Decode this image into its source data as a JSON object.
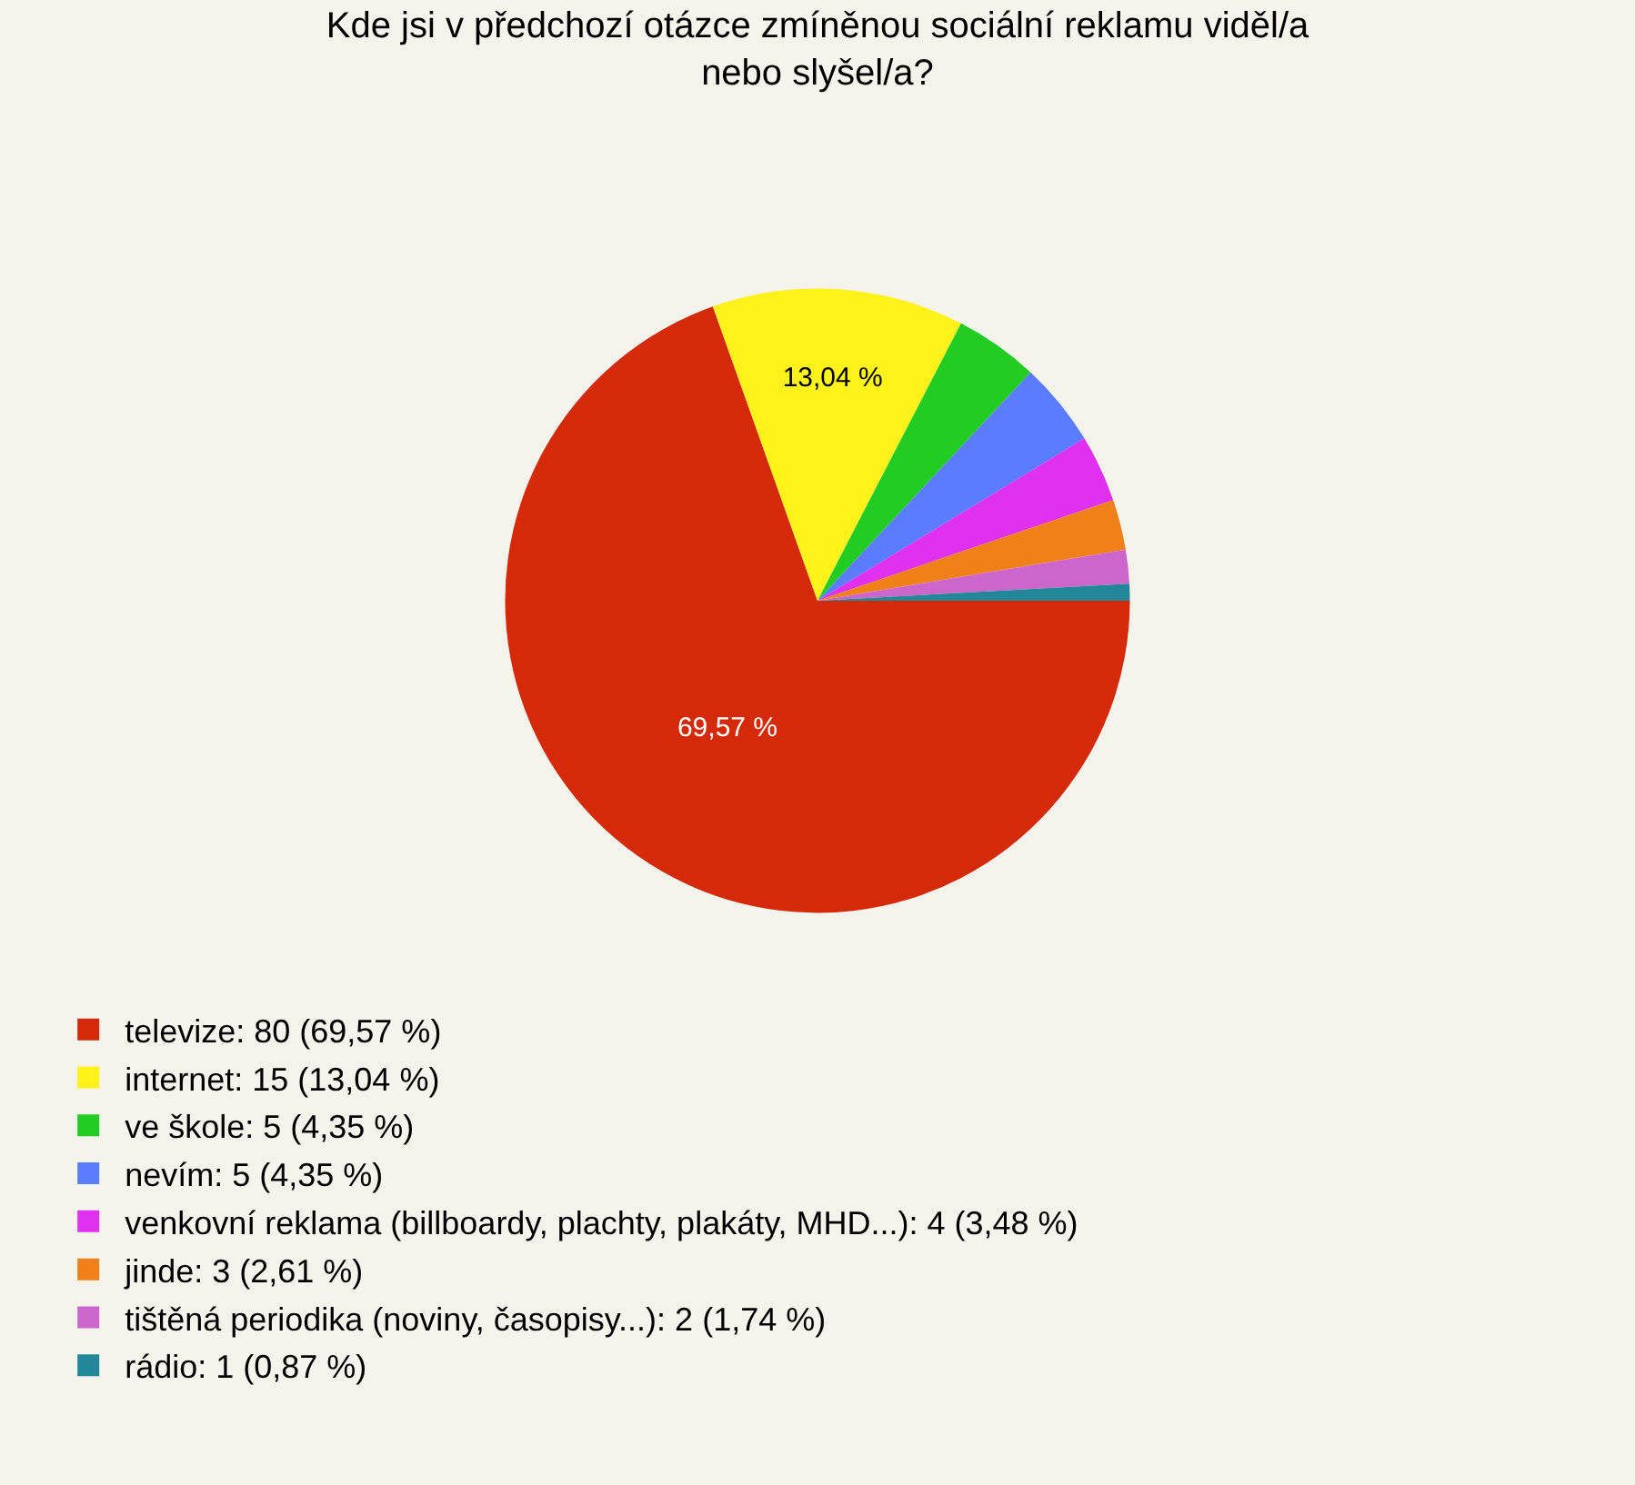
{
  "chart_data": {
    "type": "pie",
    "title": "Kde jsi v předchozí otázce zmíněnou sociální reklamu viděl/a nebo slyšel/a?",
    "categories": [
      "televize: 80 (69,57 %)",
      "internet: 15 (13,04 %)",
      "ve škole: 5 (4,35 %)",
      "nevím: 5 (4,35 %)",
      "venkovní reklama (billboardy, plachty, plakáty, MHD...): 4 (3,48 %)",
      "jinde: 3 (2,61 %)",
      "tištěná periodika (noviny, časopisy...): 2 (1,74 %)",
      "rádio: 1 (0,87 %)"
    ],
    "values": [
      69.57,
      13.04,
      4.35,
      4.35,
      3.48,
      2.61,
      1.74,
      0.87
    ],
    "value_labels": [
      "69,57 %",
      "13,04 %",
      null,
      null,
      null,
      null,
      null,
      null
    ],
    "colors": [
      "#d42a0a",
      "#fff21a",
      "#22cc22",
      "#5a7cff",
      "#e030f0",
      "#f08018",
      "#cc66cc",
      "#228899"
    ],
    "legend": "bottom left"
  }
}
